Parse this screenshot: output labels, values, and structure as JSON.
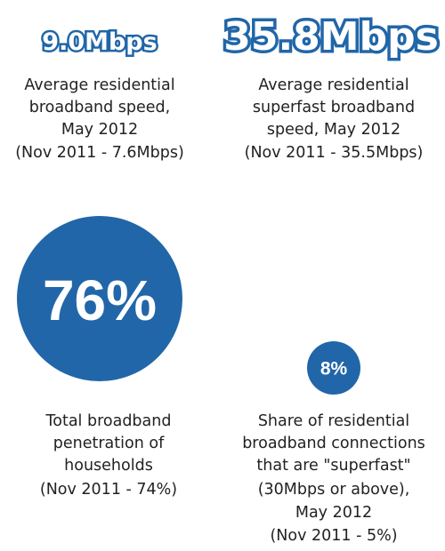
{
  "stats": [
    {
      "value": "9.0Mbps",
      "description": [
        "Average residential",
        "broadband speed,",
        "May 2012",
        "(Nov 2011 - 7.6Mbps)"
      ]
    },
    {
      "value": "35.8Mbps",
      "description": [
        "Average residential",
        "superfast broadband",
        "speed, May 2012",
        "(Nov 2011 - 35.5Mbps)"
      ]
    },
    {
      "value": "76%",
      "description": [
        "Total broadband",
        "penetration of",
        "households",
        "(Nov 2011 - 74%)"
      ]
    },
    {
      "value": "8%",
      "description": [
        "Share of residential",
        "broadband connections",
        "that are \"superfast\"",
        "(30Mbps or above),",
        "May 2012",
        "(Nov 2011 - 5%)"
      ]
    }
  ]
}
